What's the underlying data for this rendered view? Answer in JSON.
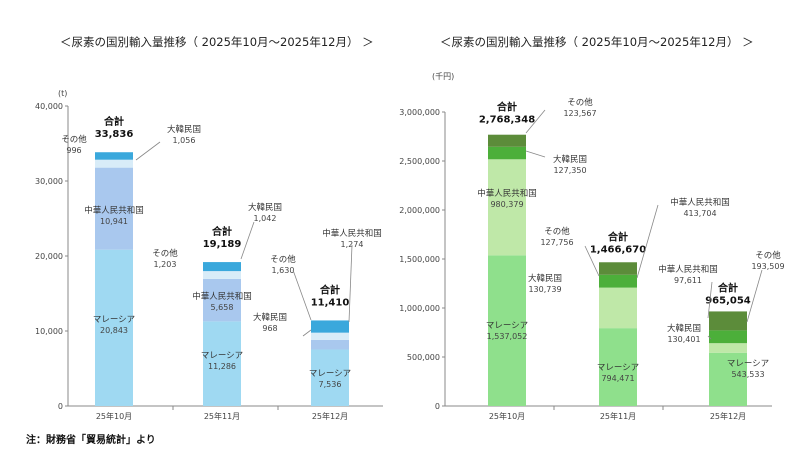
{
  "chart_data": [
    {
      "type": "bar",
      "stacked": true,
      "title": "＜尿素の国別輸入量推移（ 2025年10月～2025年12月） ＞",
      "unit": "(t)",
      "categories": [
        "25年10月",
        "25年11月",
        "25年12月"
      ],
      "ylim": [
        0,
        40000
      ],
      "yticks": [
        0,
        10000,
        20000,
        30000,
        40000
      ],
      "ytick_labels": [
        "0",
        "10,000",
        "20,000",
        "30,000",
        "40,000"
      ],
      "total_label": "合計",
      "series": [
        {
          "name": "マレーシア",
          "values": [
            20843,
            11286,
            7536
          ],
          "labels": [
            "20,843",
            "11,286",
            "7,536"
          ],
          "color": "#9fd9f2"
        },
        {
          "name": "中華人民共和国",
          "values": [
            10941,
            5658,
            1274
          ],
          "labels": [
            "10,941",
            "5,658",
            "1,274"
          ],
          "color": "#a9c8ee"
        },
        {
          "name": "大韓民国",
          "values": [
            1056,
            1042,
            968
          ],
          "labels": [
            "1,056",
            "1,042",
            "968"
          ],
          "color": "#d8ecf8"
        },
        {
          "name": "その他",
          "values": [
            996,
            1203,
            1630
          ],
          "labels": [
            "996",
            "1,203",
            "1,630"
          ],
          "color": "#3aa8dc"
        }
      ],
      "totals": [
        33836,
        19189,
        11410
      ],
      "total_labels": [
        "33,836",
        "19,189",
        "11,410"
      ]
    },
    {
      "type": "bar",
      "stacked": true,
      "title": "＜尿素の国別輸入量推移（ 2025年10月～2025年12月） ＞",
      "unit": "(千円)",
      "categories": [
        "25年10月",
        "25年11月",
        "25年12月"
      ],
      "ylim": [
        0,
        3000000
      ],
      "yticks": [
        0,
        500000,
        1000000,
        1500000,
        2000000,
        2500000,
        3000000
      ],
      "ytick_labels": [
        "0",
        "500,000",
        "1,000,000",
        "1,500,000",
        "2,000,000",
        "2,500,000",
        "3,000,000"
      ],
      "total_label": "合計",
      "series": [
        {
          "name": "マレーシア",
          "values": [
            1537052,
            794471,
            543533
          ],
          "labels": [
            "1,537,052",
            "794,471",
            "543,533"
          ],
          "color": "#8fe08c"
        },
        {
          "name": "中華人民共和国",
          "values": [
            980379,
            413704,
            97611
          ],
          "labels": [
            "980,379",
            "413,704",
            "97,611"
          ],
          "color": "#bfe8a8"
        },
        {
          "name": "大韓民国",
          "values": [
            127350,
            130739,
            130401
          ],
          "labels": [
            "127,350",
            "130,739",
            "130,401"
          ],
          "color": "#4caf3a"
        },
        {
          "name": "その他",
          "values": [
            123567,
            127756,
            193509
          ],
          "labels": [
            "123,567",
            "127,756",
            "193,509"
          ],
          "color": "#5c8c3a"
        }
      ],
      "totals": [
        2768348,
        1466670,
        965054
      ],
      "total_labels": [
        "2,768,348",
        "1,466,670",
        "965,054"
      ]
    }
  ],
  "note": "注：財務省「貿易統計」より"
}
